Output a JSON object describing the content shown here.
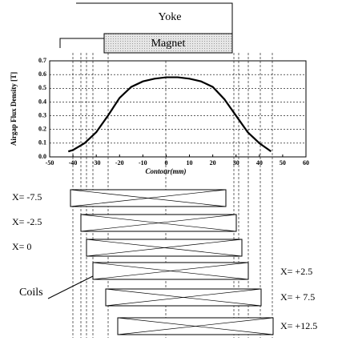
{
  "chart_data": {
    "type": "line",
    "x": [
      -42,
      -40,
      -35,
      -30,
      -25,
      -20,
      -15,
      -10,
      -5,
      0,
      5,
      10,
      15,
      20,
      25,
      30,
      35,
      40,
      45
    ],
    "series": [
      {
        "color": "#000000",
        "values": [
          0.04,
          0.05,
          0.1,
          0.18,
          0.3,
          0.43,
          0.51,
          0.55,
          0.57,
          0.58,
          0.58,
          0.57,
          0.55,
          0.51,
          0.42,
          0.3,
          0.18,
          0.1,
          0.04
        ]
      }
    ],
    "xlabel": "Contour(mm)",
    "ylabel": "Airgap Flux Density [T]",
    "xlim": [
      -50,
      60
    ],
    "ylim": [
      0,
      0.7
    ],
    "xticks": [
      -50,
      -40,
      -30,
      -20,
      -10,
      0,
      10,
      20,
      30,
      40,
      50,
      60
    ],
    "yticks": [
      {
        "value": 0,
        "label": "0.0"
      },
      0.1,
      0.2,
      0.3,
      0.4,
      0.5,
      0.6,
      0.7
    ],
    "grid": true
  },
  "diagram": {
    "yoke": "Yoke",
    "magnet": "Magnet",
    "coils_label": "Coils",
    "coils": [
      "X= -7.5",
      "X= -2.5",
      "X= 0",
      "X= +2.5",
      "X= + 7.5",
      "X= +12.5"
    ]
  }
}
